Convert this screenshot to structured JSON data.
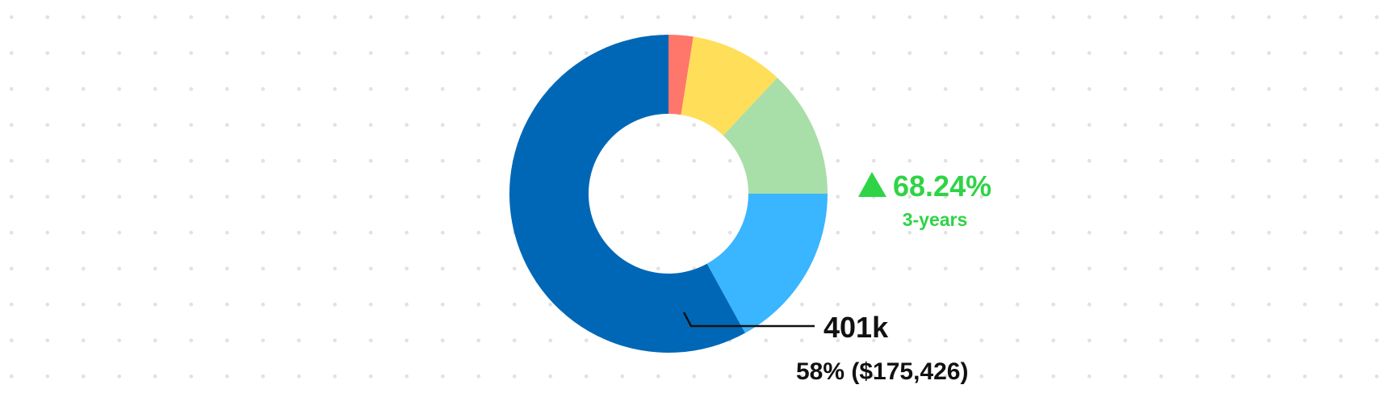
{
  "chart_data": {
    "type": "pie",
    "variant": "donut",
    "slices": [
      {
        "value": 2.5,
        "color": "#ff766b"
      },
      {
        "value": 9.5,
        "color": "#ffde59"
      },
      {
        "value": 13.0,
        "color": "#a8dea8"
      },
      {
        "value": 17.0,
        "color": "#3ab5ff"
      },
      {
        "label": "401k",
        "value": 58,
        "amount": "$175,426",
        "detail": "58% ($175,426)",
        "color": "#0067b6"
      }
    ],
    "callout": {
      "label": "401k",
      "detail": "58% ($175,426)"
    },
    "change": {
      "arrow": "▲",
      "value": "68.24%",
      "period": "3-years",
      "color": "#2ed445"
    }
  }
}
